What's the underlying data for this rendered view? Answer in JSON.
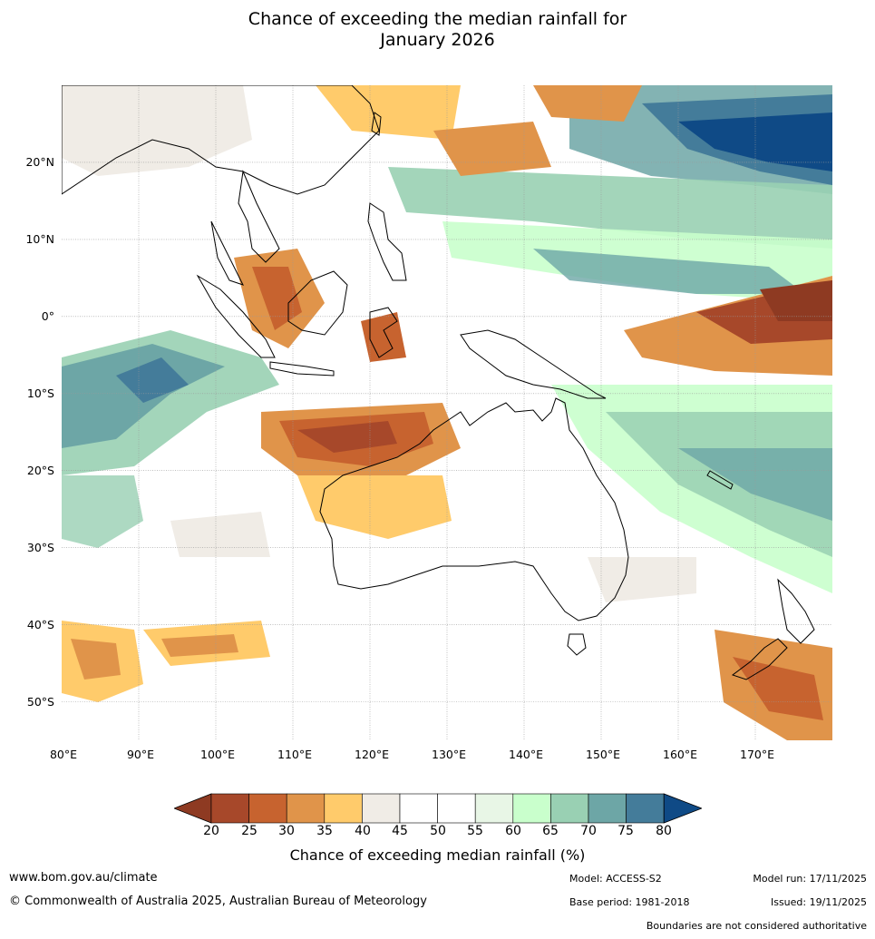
{
  "title": {
    "line1": "Chance of exceeding the median rainfall for",
    "line2": "January 2026"
  },
  "map": {
    "lat_labels": [
      "20°N",
      "10°N",
      "0°",
      "10°S",
      "20°S",
      "30°S",
      "40°S",
      "50°S"
    ],
    "lon_labels": [
      "80°E",
      "90°E",
      "100°E",
      "110°E",
      "120°E",
      "130°E",
      "140°E",
      "150°E",
      "160°E",
      "170°E"
    ],
    "extent": {
      "lon_min": 80,
      "lon_max": 180,
      "lat_min": -55,
      "lat_max": 30
    }
  },
  "colorbar": {
    "ticks": [
      "20",
      "25",
      "30",
      "35",
      "40",
      "45",
      "50",
      "55",
      "60",
      "65",
      "70",
      "75",
      "80"
    ],
    "colors": [
      "#a7482a",
      "#c7632f",
      "#e0944a",
      "#ffcb6b",
      "#f0ece6",
      "#ffffff",
      "#ffffff",
      "#e8f6e6",
      "#c9ffcc",
      "#99d0b3",
      "#6da6a6",
      "#447c9a"
    ],
    "low_color": "#8e3a22",
    "high_color": "#0f4a86",
    "label": "Chance of exceeding median rainfall (%)"
  },
  "footer": {
    "website": "www.bom.gov.au/climate",
    "copyright": "© Commonwealth of Australia 2025, Australian Bureau of Meteorology",
    "model": "Model: ACCESS-S2",
    "base_period": "Base period: 1981-2018",
    "model_run": "Model run: 17/11/2025",
    "issued": "Issued: 19/11/2025",
    "disclaimer": "Boundaries are not considered authoritative"
  }
}
